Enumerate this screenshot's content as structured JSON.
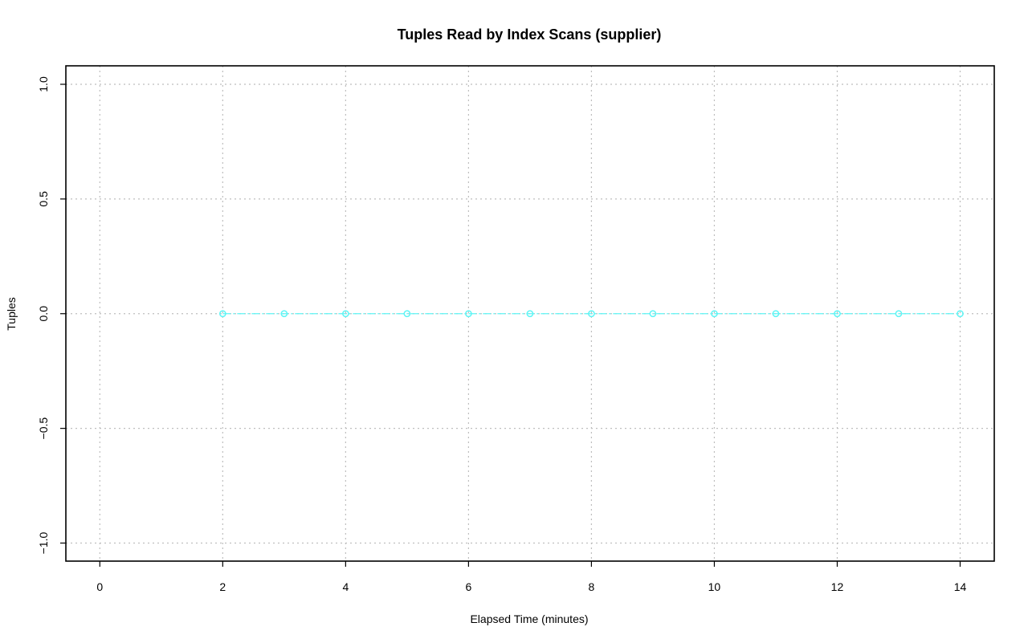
{
  "chart_data": {
    "type": "line",
    "title": "Tuples Read by Index Scans (supplier)",
    "xlabel": "Elapsed Time (minutes)",
    "ylabel": "Tuples",
    "xlim": [
      0,
      14
    ],
    "ylim": [
      -1.0,
      1.0
    ],
    "x_ticks": [
      "0",
      "2",
      "4",
      "6",
      "8",
      "10",
      "12",
      "14"
    ],
    "y_ticks": [
      "-1.0",
      "-0.5",
      "0.0",
      "0.5",
      "1.0"
    ],
    "grid": true,
    "series": [
      {
        "color": "#5ff5f5",
        "x": [
          2,
          3,
          4,
          5,
          6,
          7,
          8,
          9,
          10,
          11,
          12,
          13,
          14
        ],
        "y": [
          0,
          0,
          0,
          0,
          0,
          0,
          0,
          0,
          0,
          0,
          0,
          0,
          0
        ]
      }
    ]
  }
}
